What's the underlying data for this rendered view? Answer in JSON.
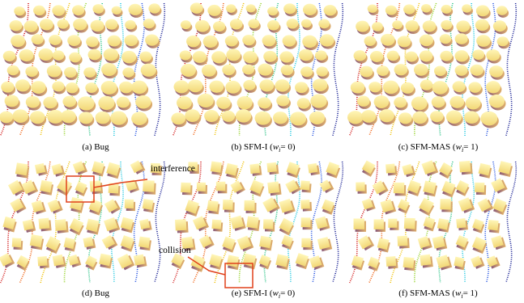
{
  "captions": [
    {
      "prefix": "(a) Bug"
    },
    {
      "prefix": "(b) SFM-I (",
      "var": "w",
      "sub": "i",
      "suffix": "= 0)"
    },
    {
      "prefix": "(c) SFM-MAS (",
      "var": "w",
      "sub": "i",
      "suffix": "= 1)"
    },
    {
      "prefix": "(d) Bug"
    },
    {
      "prefix": "(e) SFM-I (",
      "var": "w",
      "sub": "i",
      "suffix": "= 0)"
    },
    {
      "prefix": "(f) SFM-MAS (",
      "var": "w",
      "sub": "i",
      "suffix": "= 1)"
    }
  ],
  "annotations": {
    "interference": "interference",
    "collision": "collision"
  }
}
